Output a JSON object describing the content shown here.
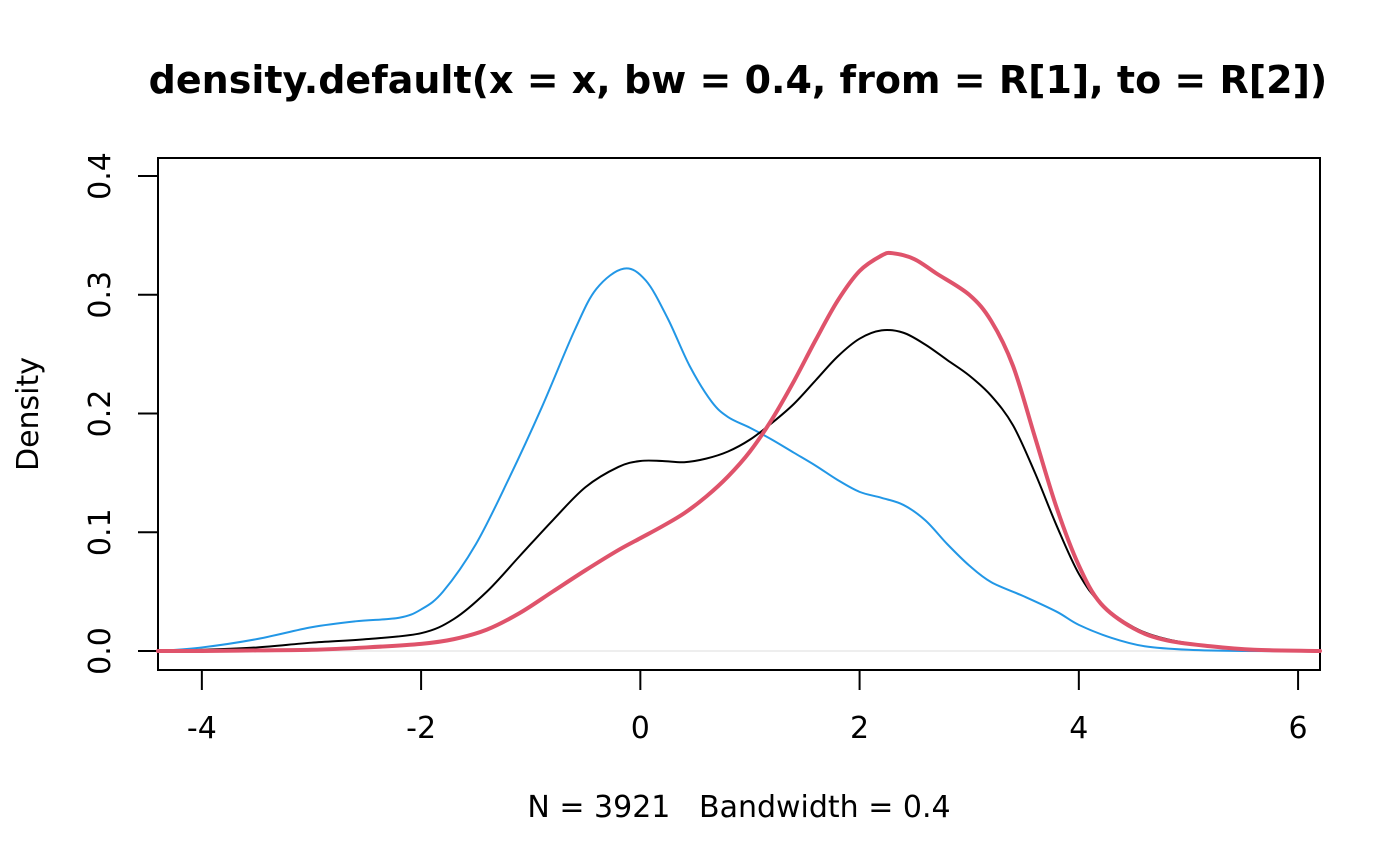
{
  "chart_data": {
    "type": "line",
    "title": "density.default(x = x, bw = 0.4, from = R[1], to = R[2])",
    "xlabel": "N = 3921   Bandwidth = 0.4",
    "ylabel": "Density",
    "xlim": [
      -4.4,
      6.2
    ],
    "ylim": [
      0,
      0.4
    ],
    "xticks": [
      -4,
      -2,
      0,
      2,
      4,
      6
    ],
    "xtick_labels": [
      "-4",
      "-2",
      "0",
      "2",
      "4",
      "6"
    ],
    "yticks": [
      0.0,
      0.1,
      0.2,
      0.3,
      0.4
    ],
    "ytick_labels": [
      "0.0",
      "0.1",
      "0.2",
      "0.3",
      "0.4"
    ],
    "grid": false,
    "series": [
      {
        "color": "#2297E6",
        "line_style": "thin",
        "x": [
          -4.4,
          -4.0,
          -3.5,
          -3.0,
          -2.6,
          -2.2,
          -2.0,
          -1.8,
          -1.5,
          -1.2,
          -0.9,
          -0.6,
          -0.4,
          -0.15,
          0.05,
          0.25,
          0.45,
          0.65,
          0.8,
          1.0,
          1.2,
          1.4,
          1.6,
          1.8,
          2.0,
          2.2,
          2.4,
          2.6,
          2.8,
          3.0,
          3.2,
          3.5,
          3.8,
          4.0,
          4.3,
          4.6,
          5.0,
          5.5,
          6.2
        ],
        "y": [
          0.0,
          0.003,
          0.01,
          0.02,
          0.025,
          0.028,
          0.035,
          0.05,
          0.09,
          0.145,
          0.205,
          0.27,
          0.305,
          0.322,
          0.312,
          0.28,
          0.24,
          0.21,
          0.197,
          0.188,
          0.178,
          0.167,
          0.156,
          0.144,
          0.134,
          0.129,
          0.123,
          0.11,
          0.09,
          0.072,
          0.058,
          0.046,
          0.033,
          0.022,
          0.011,
          0.004,
          0.001,
          0.0,
          0.0
        ]
      },
      {
        "color": "#000000",
        "line_style": "thin",
        "x": [
          -4.4,
          -4.0,
          -3.5,
          -3.0,
          -2.5,
          -2.0,
          -1.7,
          -1.4,
          -1.1,
          -0.8,
          -0.5,
          -0.2,
          0.0,
          0.2,
          0.4,
          0.6,
          0.8,
          1.0,
          1.2,
          1.4,
          1.6,
          1.8,
          2.0,
          2.2,
          2.4,
          2.6,
          2.8,
          3.0,
          3.2,
          3.4,
          3.6,
          3.8,
          4.0,
          4.2,
          4.5,
          4.8,
          5.2,
          5.6,
          6.2
        ],
        "y": [
          0.0,
          0.001,
          0.003,
          0.007,
          0.01,
          0.015,
          0.027,
          0.05,
          0.08,
          0.11,
          0.138,
          0.155,
          0.16,
          0.16,
          0.159,
          0.162,
          0.168,
          0.178,
          0.192,
          0.208,
          0.228,
          0.248,
          0.263,
          0.27,
          0.268,
          0.258,
          0.245,
          0.232,
          0.215,
          0.19,
          0.15,
          0.105,
          0.065,
          0.04,
          0.02,
          0.01,
          0.004,
          0.001,
          0.0
        ]
      },
      {
        "color": "#DF536B",
        "line_style": "thick",
        "x": [
          -4.4,
          -4.0,
          -3.5,
          -3.0,
          -2.5,
          -2.0,
          -1.7,
          -1.4,
          -1.1,
          -0.8,
          -0.5,
          -0.2,
          0.0,
          0.2,
          0.4,
          0.6,
          0.8,
          1.0,
          1.2,
          1.4,
          1.6,
          1.8,
          2.0,
          2.2,
          2.3,
          2.5,
          2.7,
          3.0,
          3.2,
          3.4,
          3.6,
          3.8,
          4.0,
          4.2,
          4.5,
          4.8,
          5.2,
          5.6,
          6.2
        ],
        "y": [
          0.0,
          0.0,
          0.0005,
          0.001,
          0.003,
          0.006,
          0.01,
          0.018,
          0.032,
          0.05,
          0.068,
          0.085,
          0.095,
          0.105,
          0.116,
          0.13,
          0.147,
          0.168,
          0.195,
          0.227,
          0.262,
          0.295,
          0.32,
          0.333,
          0.335,
          0.33,
          0.318,
          0.3,
          0.278,
          0.24,
          0.18,
          0.12,
          0.072,
          0.04,
          0.019,
          0.009,
          0.004,
          0.001,
          0.0
        ]
      }
    ]
  }
}
